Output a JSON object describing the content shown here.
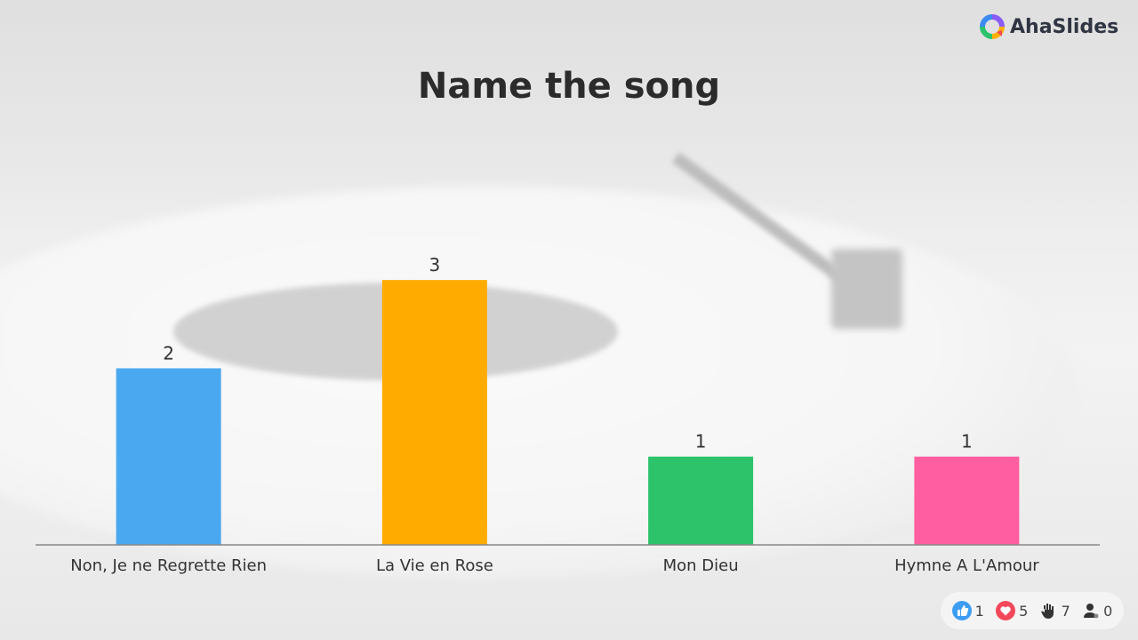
{
  "brand": {
    "name": "AhaSlides"
  },
  "chart_data": {
    "type": "bar",
    "title": "Name the song",
    "categories": [
      "Non, Je ne Regrette Rien",
      "La Vie en Rose",
      "Mon Dieu",
      "Hymne A L'Amour"
    ],
    "values": [
      2,
      3,
      1,
      1
    ],
    "colors": [
      "#4aa8f0",
      "#ffab00",
      "#2cc36b",
      "#ff5ea0"
    ],
    "data_labels": [
      "2",
      "3",
      "1",
      "1"
    ],
    "ylim": [
      0,
      3
    ],
    "grid": false
  },
  "reactions": [
    {
      "icon": "thumbs-up-icon",
      "count": "1",
      "color": "#3d9df2"
    },
    {
      "icon": "heart-icon",
      "count": "5",
      "color": "#f2485a"
    },
    {
      "icon": "raised-hand-icon",
      "count": "7",
      "color": "#333333"
    },
    {
      "icon": "audience-icon",
      "count": "0",
      "color": "#333333"
    }
  ]
}
